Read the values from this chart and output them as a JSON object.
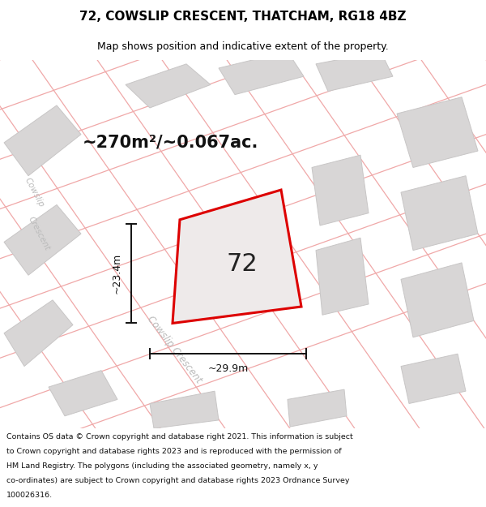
{
  "title": "72, COWSLIP CRESCENT, THATCHAM, RG18 4BZ",
  "subtitle": "Map shows position and indicative extent of the property.",
  "footer_lines": [
    "Contains OS data © Crown copyright and database right 2021. This information is subject",
    "to Crown copyright and database rights 2023 and is reproduced with the permission of",
    "HM Land Registry. The polygons (including the associated geometry, namely x, y",
    "co-ordinates) are subject to Crown copyright and database rights 2023 Ordnance Survey",
    "100026316."
  ],
  "area_label": "~270m²/~0.067ac.",
  "width_label": "~29.9m",
  "height_label": "~23.4m",
  "plot_number": "72",
  "map_bg": "#eeecec",
  "road_fill": "#f5c8c8",
  "road_line": "#f0a8a8",
  "block_fill": "#d8d6d6",
  "block_edge": "#c8c6c6",
  "plot_fill": "#eeeaea",
  "plot_edge": "#dd0000",
  "title_fontsize": 11,
  "subtitle_fontsize": 9,
  "area_fontsize": 15,
  "plot_num_fontsize": 22,
  "road_text_color": "#bbbbbb",
  "dim_color": "#111111",
  "footer_fontsize": 6.8
}
